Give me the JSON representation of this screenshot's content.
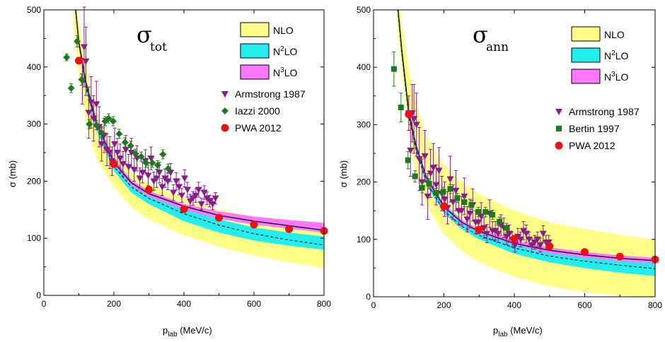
{
  "colors": {
    "nlo_band": "#ffff88",
    "n2lo_band": "#22eeee",
    "n3lo_band": "#ff77ff",
    "armstrong": "#8a1c8a",
    "iazzi": "#1e7a1e",
    "bertin": "#1e7a1e",
    "pwa": "#ee1111",
    "curve": "#222244"
  },
  "chart_data": [
    {
      "type": "line",
      "symbol": "σ",
      "symbol_sub": "tot",
      "xlabel_main": "p",
      "xlabel_sub": "lab",
      "xlabel_unit": " (MeV/c)",
      "ylabel": "σ (mb)",
      "xlim": [
        0,
        800
      ],
      "ylim": [
        0,
        500
      ],
      "xticks": [
        0,
        200,
        400,
        600,
        800
      ],
      "yticks": [
        0,
        100,
        200,
        300,
        400,
        500
      ],
      "legend_bands": [
        {
          "label": "NLO",
          "sup": "",
          "color_key": "nlo_band"
        },
        {
          "label": "N",
          "sup": "2",
          "tail": "LO",
          "color_key": "n2lo_band"
        },
        {
          "label": "N",
          "sup": "3",
          "tail": "LO",
          "color_key": "n3lo_band"
        }
      ],
      "legend_points": [
        {
          "label": "Armstrong 1987",
          "marker": "triangle-down",
          "color_key": "armstrong"
        },
        {
          "label": "Iazzi 2000",
          "marker": "diamond",
          "color_key": "iazzi"
        },
        {
          "label": "PWA 2012",
          "marker": "circle",
          "color_key": "pwa"
        }
      ],
      "bands": {
        "x": [
          85,
          100,
          120,
          150,
          200,
          250,
          300,
          400,
          500,
          600,
          700,
          800
        ],
        "nlo": {
          "lower": [
            470,
            380,
            305,
            240,
            190,
            155,
            133,
            105,
            85,
            70,
            58,
            48
          ],
          "upper": [
            560,
            480,
            400,
            325,
            250,
            215,
            195,
            170,
            150,
            138,
            130,
            124
          ]
        },
        "n2lo": {
          "lower": [
            525,
            435,
            360,
            290,
            218,
            180,
            160,
            130,
            110,
            96,
            87,
            80
          ],
          "upper": [
            540,
            445,
            373,
            305,
            236,
            198,
            178,
            153,
            133,
            119,
            110,
            103
          ]
        },
        "n3lo": {
          "lower": [
            532,
            440,
            370,
            300,
            230,
            192,
            173,
            150,
            134,
            124,
            117,
            110
          ],
          "upper": [
            545,
            450,
            380,
            310,
            240,
            202,
            183,
            160,
            147,
            138,
            132,
            127
          ]
        }
      },
      "central": {
        "x": [
          85,
          100,
          120,
          150,
          200,
          250,
          300,
          400,
          500,
          600,
          700,
          800
        ],
        "y": [
          538,
          443,
          373,
          302,
          233,
          197,
          178,
          156,
          140,
          130,
          122,
          114
        ]
      },
      "dashed": {
        "x": [
          85,
          100,
          120,
          150,
          200,
          250,
          300,
          400,
          500,
          600,
          700,
          800
        ],
        "y": [
          532,
          440,
          366,
          296,
          226,
          190,
          170,
          143,
          123,
          108,
          97,
          88
        ]
      },
      "series": [
        {
          "name": "Armstrong 1987",
          "marker": "triangle-down",
          "color_key": "armstrong",
          "x": [
            110,
            115,
            120,
            128,
            135,
            142,
            150,
            158,
            165,
            172,
            180,
            188,
            195,
            202,
            210,
            218,
            226,
            234,
            242,
            250,
            258,
            266,
            274,
            282,
            290,
            298,
            306,
            314,
            322,
            330,
            338,
            346,
            354,
            362,
            370,
            378,
            386,
            394,
            402,
            410,
            418,
            426,
            434,
            442,
            450,
            458,
            466,
            474,
            482,
            490
          ],
          "y": [
            375,
            435,
            410,
            320,
            338,
            310,
            335,
            295,
            265,
            280,
            255,
            250,
            235,
            265,
            250,
            240,
            230,
            255,
            225,
            250,
            220,
            240,
            205,
            215,
            235,
            210,
            240,
            200,
            205,
            215,
            190,
            205,
            200,
            215,
            180,
            200,
            190,
            175,
            205,
            185,
            165,
            170,
            175,
            185,
            160,
            180,
            170,
            165,
            160,
            170
          ],
          "err": [
            40,
            70,
            60,
            45,
            45,
            40,
            40,
            35,
            30,
            30,
            28,
            28,
            25,
            28,
            25,
            25,
            22,
            25,
            22,
            25,
            20,
            22,
            18,
            18,
            20,
            18,
            20,
            16,
            16,
            18,
            15,
            16,
            15,
            16,
            14,
            15,
            14,
            12,
            15,
            13,
            12,
            12,
            12,
            13,
            10,
            12,
            11,
            10,
            10,
            10
          ]
        },
        {
          "name": "Iazzi 2000",
          "marker": "diamond",
          "color_key": "iazzi",
          "x": [
            65,
            78,
            95,
            108,
            130,
            150,
            165,
            175,
            185,
            198,
            215,
            232,
            248,
            262,
            278,
            292,
            310,
            325,
            340,
            355
          ],
          "y": [
            417,
            363,
            445,
            378,
            300,
            298,
            285,
            305,
            310,
            305,
            283,
            268,
            262,
            248,
            243,
            232,
            232,
            228,
            247,
            222
          ],
          "err": [
            6,
            8,
            10,
            10,
            8,
            8,
            8,
            8,
            8,
            8,
            8,
            8,
            8,
            8,
            8,
            8,
            8,
            8,
            8,
            8
          ]
        },
        {
          "name": "PWA 2012",
          "marker": "circle",
          "color_key": "pwa",
          "x": [
            100,
            200,
            300,
            400,
            500,
            600,
            700,
            800
          ],
          "y": [
            411,
            230,
            185,
            151,
            136,
            124,
            116,
            113
          ]
        }
      ]
    },
    {
      "type": "line",
      "symbol": "σ",
      "symbol_sub": "ann",
      "xlabel_main": "p",
      "xlabel_sub": "lab",
      "xlabel_unit": " (MeV/c)",
      "ylabel": "σ (mb)",
      "xlim": [
        0,
        800
      ],
      "ylim": [
        0,
        500
      ],
      "xticks": [
        0,
        200,
        400,
        600,
        800
      ],
      "yticks": [
        0,
        100,
        200,
        300,
        400,
        500
      ],
      "legend_bands": [
        {
          "label": "NLO",
          "sup": "",
          "color_key": "nlo_band"
        },
        {
          "label": "N",
          "sup": "2",
          "tail": "LO",
          "color_key": "n2lo_band"
        },
        {
          "label": "N",
          "sup": "3",
          "tail": "LO",
          "color_key": "n3lo_band"
        }
      ],
      "legend_points": [
        {
          "label": "Armstrong 1987",
          "marker": "triangle-down",
          "color_key": "armstrong"
        },
        {
          "label": "Bertin 1997",
          "marker": "square",
          "color_key": "bertin"
        },
        {
          "label": "PWA 2012",
          "marker": "circle",
          "color_key": "pwa"
        }
      ],
      "bands": {
        "x": [
          65,
          80,
          100,
          120,
          150,
          200,
          250,
          300,
          400,
          500,
          600,
          700,
          800
        ],
        "nlo": {
          "lower": [
            490,
            390,
            290,
            215,
            160,
            110,
            80,
            60,
            35,
            18,
            8,
            2,
            0
          ],
          "upper": [
            560,
            480,
            400,
            340,
            280,
            230,
            200,
            180,
            150,
            130,
            118,
            108,
            100
          ]
        },
        "n2lo": {
          "lower": [
            520,
            420,
            310,
            255,
            195,
            145,
            118,
            100,
            75,
            60,
            50,
            42,
            36
          ],
          "upper": [
            540,
            440,
            330,
            270,
            212,
            162,
            135,
            118,
            95,
            82,
            74,
            68,
            64
          ]
        },
        "n3lo": {
          "lower": [
            528,
            428,
            318,
            262,
            205,
            155,
            128,
            112,
            90,
            76,
            68,
            62,
            58
          ],
          "upper": [
            536,
            436,
            326,
            268,
            212,
            160,
            134,
            118,
            98,
            86,
            78,
            72,
            68
          ]
        }
      },
      "central": {
        "x": [
          65,
          80,
          100,
          120,
          150,
          200,
          250,
          300,
          400,
          500,
          600,
          700,
          800
        ],
        "y": [
          532,
          432,
          322,
          265,
          208,
          157,
          130,
          114,
          93,
          81,
          73,
          67,
          63
        ]
      },
      "dashed": {
        "x": [
          65,
          80,
          100,
          120,
          150,
          200,
          250,
          300,
          400,
          500,
          600,
          700,
          800
        ],
        "y": [
          526,
          426,
          316,
          258,
          200,
          150,
          123,
          107,
          85,
          71,
          62,
          55,
          49
        ]
      },
      "series": [
        {
          "name": "Armstrong 1987",
          "marker": "triangle-down",
          "color_key": "armstrong",
          "x": [
            100,
            105,
            110,
            115,
            122,
            130,
            138,
            146,
            154,
            162,
            170,
            178,
            186,
            194,
            202,
            210,
            218,
            226,
            234,
            242,
            250,
            258,
            266,
            274,
            282,
            290,
            298,
            306,
            314,
            322,
            330,
            338,
            346,
            354,
            362,
            370,
            378,
            386,
            394,
            402,
            410,
            418,
            426,
            434,
            442,
            450,
            458,
            466,
            474,
            482,
            490,
            498
          ],
          "y": [
            320,
            255,
            320,
            310,
            300,
            240,
            200,
            245,
            175,
            215,
            225,
            195,
            220,
            180,
            170,
            155,
            205,
            165,
            185,
            150,
            150,
            175,
            135,
            145,
            160,
            130,
            130,
            140,
            120,
            110,
            145,
            115,
            115,
            110,
            125,
            120,
            105,
            110,
            100,
            90,
            105,
            100,
            115,
            110,
            100,
            90,
            95,
            100,
            90,
            110,
            95,
            95
          ],
          "err": [
            30,
            45,
            50,
            60,
            55,
            55,
            40,
            45,
            40,
            42,
            42,
            35,
            40,
            30,
            30,
            28,
            40,
            30,
            35,
            25,
            25,
            32,
            22,
            25,
            28,
            20,
            20,
            24,
            18,
            16,
            24,
            16,
            16,
            15,
            18,
            17,
            14,
            15,
            13,
            12,
            14,
            13,
            16,
            15,
            13,
            12,
            12,
            13,
            12,
            14,
            12,
            12
          ]
        },
        {
          "name": "Bertin 1997",
          "marker": "square",
          "color_key": "bertin",
          "x": [
            58,
            78,
            98,
            118,
            138,
            158,
            178,
            198,
            218,
            238,
            258,
            278,
            298,
            318,
            338,
            358,
            378
          ],
          "y": [
            397,
            330,
            238,
            210,
            190,
            197,
            181,
            183,
            188,
            172,
            165,
            160,
            148,
            148,
            143,
            131,
            120
          ],
          "err": [
            30,
            25,
            15,
            10,
            9,
            9,
            8,
            8,
            8,
            8,
            8,
            8,
            8,
            8,
            8,
            8,
            8
          ]
        },
        {
          "name": "PWA 2012",
          "marker": "circle",
          "color_key": "pwa",
          "x": [
            100,
            200,
            300,
            400,
            500,
            600,
            700,
            800
          ],
          "y": [
            318,
            158,
            117,
            101,
            88,
            78,
            70,
            65
          ]
        }
      ]
    }
  ]
}
